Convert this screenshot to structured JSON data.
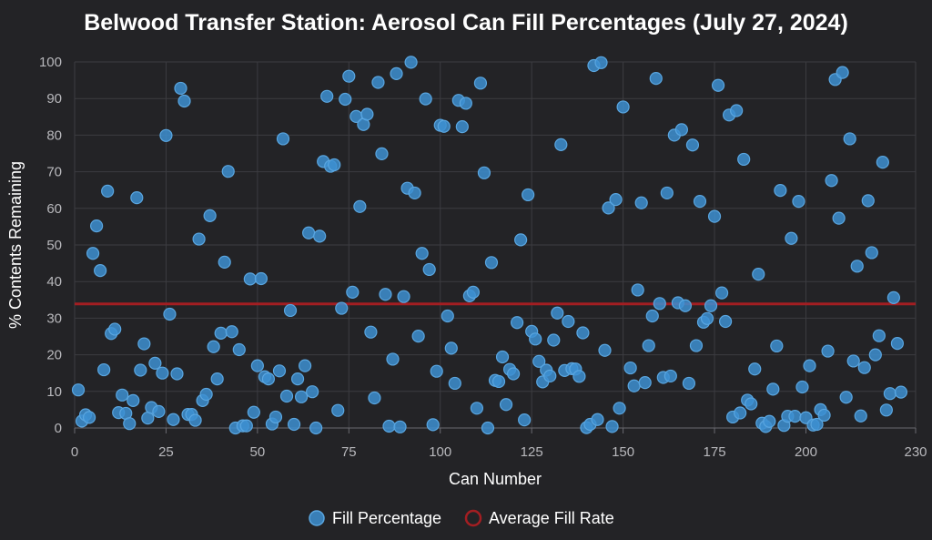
{
  "chart_data": {
    "type": "scatter",
    "title": "Belwood Transfer Station: Aerosol Can Fill Percentages (July 27, 2024)",
    "xlabel": "Can Number",
    "ylabel": "% Contents Remaining",
    "xlim": [
      0,
      230
    ],
    "ylim": [
      0,
      100
    ],
    "x_ticks": [
      0,
      25,
      50,
      75,
      100,
      125,
      150,
      175,
      200,
      230
    ],
    "y_ticks": [
      0,
      10,
      20,
      30,
      40,
      50,
      60,
      70,
      80,
      90,
      100
    ],
    "grid": true,
    "legend_position": "bottom",
    "series": [
      {
        "name": "Fill Percentage",
        "color": "#3d8fd1",
        "points": [
          [
            1,
            10.4
          ],
          [
            2,
            1.9
          ],
          [
            3,
            3.6
          ],
          [
            4,
            2.9
          ],
          [
            5,
            47.7
          ],
          [
            6,
            55.2
          ],
          [
            7,
            43.0
          ],
          [
            8,
            15.9
          ],
          [
            9,
            64.7
          ],
          [
            10,
            25.8
          ],
          [
            11,
            27.0
          ],
          [
            12,
            4.2
          ],
          [
            13,
            9.0
          ],
          [
            14,
            4.0
          ],
          [
            15,
            1.2
          ],
          [
            16,
            7.5
          ],
          [
            17,
            62.9
          ],
          [
            18,
            15.8
          ],
          [
            19,
            23.0
          ],
          [
            20,
            2.7
          ],
          [
            21,
            5.6
          ],
          [
            22,
            17.7
          ],
          [
            23,
            4.5
          ],
          [
            24,
            15.0
          ],
          [
            25,
            79.9
          ],
          [
            26,
            31.1
          ],
          [
            27,
            2.3
          ],
          [
            28,
            14.8
          ],
          [
            29,
            92.8
          ],
          [
            30,
            89.3
          ],
          [
            31,
            3.7
          ],
          [
            32,
            3.7
          ],
          [
            33,
            2.1
          ],
          [
            34,
            51.6
          ],
          [
            35,
            7.5
          ],
          [
            36,
            9.2
          ],
          [
            37,
            58.0
          ],
          [
            38,
            22.2
          ],
          [
            39,
            13.4
          ],
          [
            40,
            25.9
          ],
          [
            41,
            45.3
          ],
          [
            42,
            70.1
          ],
          [
            43,
            26.3
          ],
          [
            44,
            0.0
          ],
          [
            45,
            21.4
          ],
          [
            46,
            0.6
          ],
          [
            47,
            0.6
          ],
          [
            48,
            40.7
          ],
          [
            49,
            4.3
          ],
          [
            50,
            17.0
          ],
          [
            51,
            40.8
          ],
          [
            52,
            14.0
          ],
          [
            53,
            13.4
          ],
          [
            54,
            1.1
          ],
          [
            55,
            3.0
          ],
          [
            56,
            15.6
          ],
          [
            57,
            79.0
          ],
          [
            58,
            8.7
          ],
          [
            59,
            32.1
          ],
          [
            60,
            1.0
          ],
          [
            61,
            13.4
          ],
          [
            62,
            8.5
          ],
          [
            63,
            17.0
          ],
          [
            64,
            53.3
          ],
          [
            65,
            9.9
          ],
          [
            66,
            0.0
          ],
          [
            67,
            52.4
          ],
          [
            68,
            72.8
          ],
          [
            69,
            90.6
          ],
          [
            70,
            71.5
          ],
          [
            71,
            71.9
          ],
          [
            72,
            4.8
          ],
          [
            73,
            32.7
          ],
          [
            74,
            89.8
          ],
          [
            75,
            96.1
          ],
          [
            76,
            37.1
          ],
          [
            77,
            85.1
          ],
          [
            78,
            60.5
          ],
          [
            79,
            82.9
          ],
          [
            80,
            85.7
          ],
          [
            81,
            26.2
          ],
          [
            82,
            8.2
          ],
          [
            83,
            94.4
          ],
          [
            84,
            74.9
          ],
          [
            85,
            36.5
          ],
          [
            86,
            0.5
          ],
          [
            87,
            18.8
          ],
          [
            88,
            96.8
          ],
          [
            89,
            0.3
          ],
          [
            90,
            35.9
          ],
          [
            91,
            65.5
          ],
          [
            92,
            99.9
          ],
          [
            93,
            64.2
          ],
          [
            94,
            25.1
          ],
          [
            95,
            47.7
          ],
          [
            96,
            89.9
          ],
          [
            97,
            43.3
          ],
          [
            98,
            0.9
          ],
          [
            99,
            15.5
          ],
          [
            100,
            82.7
          ],
          [
            101,
            82.4
          ],
          [
            102,
            30.6
          ],
          [
            103,
            21.8
          ],
          [
            104,
            12.2
          ],
          [
            105,
            89.5
          ],
          [
            106,
            82.3
          ],
          [
            107,
            88.7
          ],
          [
            108,
            36.1
          ],
          [
            109,
            37.1
          ],
          [
            110,
            5.4
          ],
          [
            111,
            94.2
          ],
          [
            112,
            69.7
          ],
          [
            113,
            0.0
          ],
          [
            114,
            45.2
          ],
          [
            115,
            13.0
          ],
          [
            116,
            12.7
          ],
          [
            117,
            19.4
          ],
          [
            118,
            6.4
          ],
          [
            119,
            16.0
          ],
          [
            120,
            14.8
          ],
          [
            121,
            28.8
          ],
          [
            122,
            51.4
          ],
          [
            123,
            2.2
          ],
          [
            124,
            63.7
          ],
          [
            125,
            26.4
          ],
          [
            126,
            24.3
          ],
          [
            127,
            18.2
          ],
          [
            128,
            12.6
          ],
          [
            129,
            15.8
          ],
          [
            130,
            14.2
          ],
          [
            131,
            24.0
          ],
          [
            132,
            31.4
          ],
          [
            133,
            77.4
          ],
          [
            134,
            15.7
          ],
          [
            135,
            29.1
          ],
          [
            136,
            16.2
          ],
          [
            137,
            16.1
          ],
          [
            138,
            14.1
          ],
          [
            139,
            26.0
          ],
          [
            140,
            0.1
          ],
          [
            141,
            1.0
          ],
          [
            142,
            99.0
          ],
          [
            143,
            2.3
          ],
          [
            144,
            99.8
          ],
          [
            145,
            21.2
          ],
          [
            146,
            60.1
          ],
          [
            147,
            0.4
          ],
          [
            148,
            62.4
          ],
          [
            149,
            5.4
          ],
          [
            150,
            87.7
          ],
          [
            152,
            16.4
          ],
          [
            153,
            11.5
          ],
          [
            154,
            37.7
          ],
          [
            155,
            61.5
          ],
          [
            156,
            12.4
          ],
          [
            157,
            22.5
          ],
          [
            158,
            30.6
          ],
          [
            159,
            95.5
          ],
          [
            160,
            34.0
          ],
          [
            161,
            13.8
          ],
          [
            162,
            64.2
          ],
          [
            163,
            14.2
          ],
          [
            164,
            80.0
          ],
          [
            165,
            34.2
          ],
          [
            166,
            81.5
          ],
          [
            167,
            33.4
          ],
          [
            168,
            12.2
          ],
          [
            169,
            77.3
          ],
          [
            170,
            22.5
          ],
          [
            171,
            61.9
          ],
          [
            172,
            28.9
          ],
          [
            173,
            29.9
          ],
          [
            174,
            33.4
          ],
          [
            175,
            57.8
          ],
          [
            176,
            93.6
          ],
          [
            177,
            36.9
          ],
          [
            178,
            29.1
          ],
          [
            179,
            85.5
          ],
          [
            180,
            3.0
          ],
          [
            181,
            86.7
          ],
          [
            182,
            4.1
          ],
          [
            183,
            73.4
          ],
          [
            184,
            7.6
          ],
          [
            185,
            6.6
          ],
          [
            186,
            16.1
          ],
          [
            187,
            42.0
          ],
          [
            188,
            1.3
          ],
          [
            189,
            0.4
          ],
          [
            190,
            1.8
          ],
          [
            191,
            10.6
          ],
          [
            192,
            22.4
          ],
          [
            193,
            64.9
          ],
          [
            194,
            0.7
          ],
          [
            195,
            3.2
          ],
          [
            196,
            51.8
          ],
          [
            197,
            3.2
          ],
          [
            198,
            61.9
          ],
          [
            199,
            11.2
          ],
          [
            200,
            2.8
          ],
          [
            201,
            17.0
          ],
          [
            202,
            0.8
          ],
          [
            203,
            1.0
          ],
          [
            204,
            5.0
          ],
          [
            205,
            3.5
          ],
          [
            206,
            21.0
          ],
          [
            207,
            67.6
          ],
          [
            208,
            95.2
          ],
          [
            209,
            57.3
          ],
          [
            210,
            97.1
          ],
          [
            211,
            8.4
          ],
          [
            212,
            79.0
          ],
          [
            213,
            18.3
          ],
          [
            214,
            44.2
          ],
          [
            215,
            3.3
          ],
          [
            216,
            16.5
          ],
          [
            217,
            62.1
          ],
          [
            218,
            47.9
          ],
          [
            219,
            20.0
          ],
          [
            220,
            25.2
          ],
          [
            221,
            72.6
          ],
          [
            222,
            4.9
          ],
          [
            223,
            9.4
          ],
          [
            224,
            35.6
          ],
          [
            225,
            23.1
          ],
          [
            226,
            9.8
          ]
        ]
      },
      {
        "name": "Average Fill Rate",
        "kind": "hline",
        "color": "#a31e22",
        "value": 33.9
      }
    ]
  }
}
